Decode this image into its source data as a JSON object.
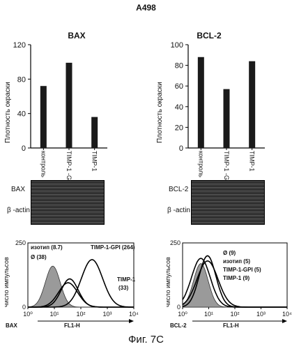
{
  "figure": {
    "title": "A498",
    "caption": "Фиг. 7С"
  },
  "panels": {
    "bax": {
      "title": "BAX",
      "ylabel": "Плотность окраски",
      "blot_label": "BAX",
      "actin_label": "β -actin"
    },
    "bcl2": {
      "title": "BCL-2",
      "ylabel": "Плотность окраски",
      "blot_label": "BCL-2",
      "actin_label": "β -actin"
    }
  },
  "flow": {
    "bax": {
      "ylabel": "число импульсов",
      "xlabel": "FL1-H",
      "marker": "BAX",
      "legend": [
        "изотип (8.7)",
        "Ø (38)",
        "TIMP-1-GPI (264)",
        "TIMP-1",
        "(33)"
      ]
    },
    "bcl2": {
      "ylabel": "число импульсов",
      "xlabel": "FL1-H",
      "marker": "BCL-2",
      "legend": [
        "Ø (9)",
        "изотип (5)",
        "TIMP-1-GPI (5)",
        "TIMP-1 (9)"
      ]
    }
  },
  "chart_data": [
    {
      "type": "bar",
      "title": "BAX",
      "ylabel": "Плотность окраски",
      "categories": [
        "контроль",
        "TIMP-1 -GPI",
        "TIMP-1"
      ],
      "values": [
        72,
        99,
        36
      ],
      "ylim": [
        0,
        120
      ],
      "yticks": [
        "0",
        "40",
        "80",
        "120"
      ],
      "grid": false
    },
    {
      "type": "bar",
      "title": "BCL-2",
      "ylabel": "Плотность окраски",
      "categories": [
        "контроль",
        "TIMP-1 -GPI",
        "TIMP-1"
      ],
      "values": [
        88,
        57,
        84
      ],
      "ylim": [
        0,
        100
      ],
      "yticks": [
        "0",
        "20",
        "40",
        "60",
        "80",
        "100"
      ],
      "grid": false
    },
    {
      "type": "line",
      "title": "",
      "xlabel": "FL1-H",
      "ylabel": "число импульсов",
      "xscale": "log",
      "xlim": [
        1,
        10000
      ],
      "ylim": [
        0,
        250
      ],
      "xticks": [
        "10⁰",
        "10¹",
        "10²",
        "10³",
        "10⁴"
      ],
      "series": [
        {
          "name": "изотип (8.7)",
          "peak_x": 8.7,
          "peak_y": 160,
          "filled": true
        },
        {
          "name": "Ø (38)",
          "peak_x": 38,
          "peak_y": 110,
          "filled": false
        },
        {
          "name": "TIMP-1 (33)",
          "peak_x": 33,
          "peak_y": 95,
          "filled": false
        },
        {
          "name": "TIMP-1-GPI (264)",
          "peak_x": 264,
          "peak_y": 185,
          "filled": false
        }
      ]
    },
    {
      "type": "line",
      "title": "",
      "xlabel": "FL1-H",
      "ylabel": "число импульсов",
      "xscale": "log",
      "xlim": [
        1,
        10000
      ],
      "ylim": [
        0,
        250
      ],
      "xticks": [
        "10⁰",
        "10¹",
        "10²",
        "10³",
        "10⁴"
      ],
      "series": [
        {
          "name": "изотип (5)",
          "peak_x": 5,
          "peak_y": 170,
          "filled": true
        },
        {
          "name": "Ø (9)",
          "peak_x": 9,
          "peak_y": 200,
          "filled": false
        },
        {
          "name": "TIMP-1-GPI (5)",
          "peak_x": 5,
          "peak_y": 190,
          "filled": false
        },
        {
          "name": "TIMP-1 (9)",
          "peak_x": 9,
          "peak_y": 180,
          "filled": false
        }
      ]
    }
  ]
}
